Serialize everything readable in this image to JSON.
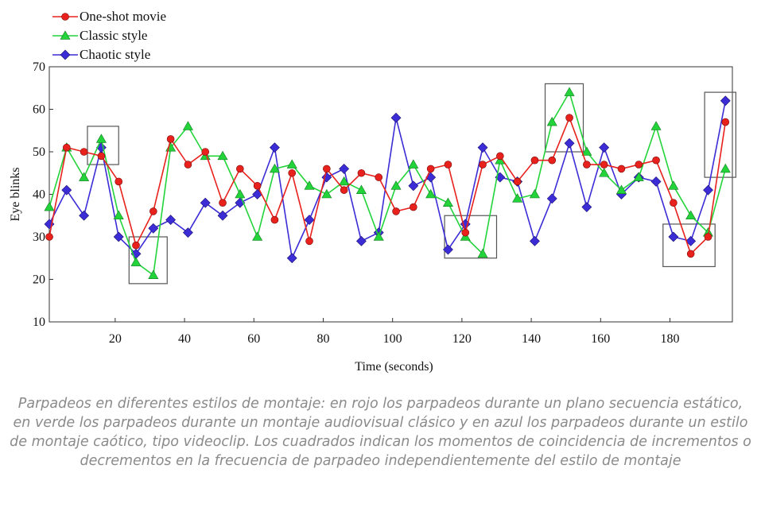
{
  "caption": "Parpadeos en diferentes estilos de montaje: en rojo los parpadeos durante un plano secuencia estático, en verde los parpadeos durante un montaje audiovisual clásico y en azul los parpadeos durante un estilo de montaje caótico, tipo videoclip. Los cuadrados indican los momentos de coincidencia de incrementos o decrementos en la frecuencia de parpadeo independientemente del estilo de montaje",
  "chart_data": {
    "type": "line",
    "xlabel": "Time (seconds)",
    "ylabel": "Eye blinks",
    "xlim": [
      1,
      198
    ],
    "ylim": [
      10,
      70
    ],
    "xticks": [
      20,
      40,
      60,
      80,
      100,
      120,
      140,
      160,
      180
    ],
    "yticks": [
      10,
      20,
      30,
      40,
      50,
      60,
      70
    ],
    "grid": false,
    "legend": "top-left",
    "x": [
      1,
      6,
      11,
      16,
      21,
      26,
      31,
      36,
      41,
      46,
      51,
      56,
      61,
      66,
      71,
      76,
      81,
      86,
      91,
      96,
      101,
      106,
      111,
      116,
      121,
      126,
      131,
      136,
      141,
      146,
      151,
      156,
      161,
      166,
      171,
      176,
      181,
      186,
      191,
      196
    ],
    "series": [
      {
        "name": "One-shot movie",
        "color": "#e8211d",
        "marker": "circle",
        "values": [
          30,
          51,
          50,
          49,
          43,
          28,
          36,
          53,
          47,
          50,
          38,
          46,
          42,
          34,
          45,
          29,
          46,
          41,
          45,
          44,
          36,
          37,
          46,
          47,
          31,
          47,
          49,
          43,
          48,
          48,
          58,
          47,
          47,
          46,
          47,
          48,
          38,
          26,
          30,
          57
        ]
      },
      {
        "name": "Classic style",
        "color": "#22d43a",
        "marker": "triangle",
        "values": [
          37,
          51,
          44,
          53,
          35,
          24,
          21,
          51,
          56,
          49,
          49,
          40,
          30,
          46,
          47,
          42,
          40,
          43,
          41,
          30,
          42,
          47,
          40,
          38,
          30,
          26,
          48,
          39,
          40,
          57,
          64,
          50,
          45,
          41,
          44,
          56,
          42,
          35,
          31,
          46
        ]
      },
      {
        "name": "Chaotic style",
        "color": "#3b2cd6",
        "marker": "diamond",
        "values": [
          33,
          41,
          35,
          51,
          30,
          26,
          32,
          34,
          31,
          38,
          35,
          38,
          40,
          51,
          25,
          34,
          44,
          46,
          29,
          31,
          58,
          42,
          44,
          27,
          33,
          51,
          44,
          43,
          29,
          39,
          52,
          37,
          51,
          40,
          44,
          43,
          30,
          29,
          41,
          62
        ]
      }
    ],
    "highlight_boxes": [
      {
        "x": [
          12,
          21
        ],
        "y": [
          47,
          56
        ]
      },
      {
        "x": [
          24,
          35
        ],
        "y": [
          19,
          30
        ]
      },
      {
        "x": [
          115,
          130
        ],
        "y": [
          25,
          35
        ]
      },
      {
        "x": [
          144,
          155
        ],
        "y": [
          50,
          66
        ]
      },
      {
        "x": [
          178,
          193
        ],
        "y": [
          23,
          33
        ]
      },
      {
        "x": [
          190,
          199
        ],
        "y": [
          44,
          64
        ]
      }
    ]
  }
}
